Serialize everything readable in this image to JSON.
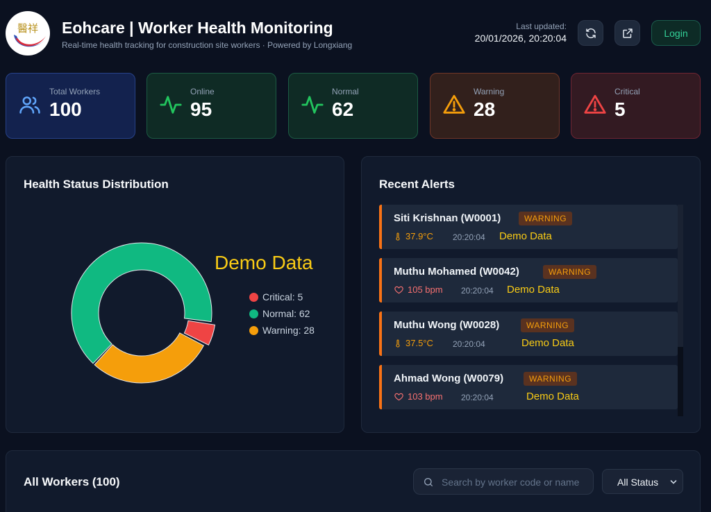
{
  "header": {
    "title": "Eohcare | Worker Health Monitoring",
    "subtitle": "Real-time health tracking for construction site workers · Powered by Longxiang",
    "last_updated_label": "Last updated:",
    "last_updated_value": "20/01/2026, 20:20:04",
    "logo_text": "醫祥",
    "refresh_icon": "refresh-icon",
    "external_icon": "external-link-icon",
    "login_label": "Login"
  },
  "stats": [
    {
      "key": "total",
      "label": "Total Workers",
      "value": "100",
      "icon": "users-icon",
      "color": "#60a5fa"
    },
    {
      "key": "online",
      "label": "Online",
      "value": "95",
      "icon": "activity-icon",
      "color": "#22c55e"
    },
    {
      "key": "normal",
      "label": "Normal",
      "value": "62",
      "icon": "activity-icon",
      "color": "#22c55e"
    },
    {
      "key": "warning",
      "label": "Warning",
      "value": "28",
      "icon": "warning-triangle-icon",
      "color": "#f59e0b"
    },
    {
      "key": "critical",
      "label": "Critical",
      "value": "5",
      "icon": "warning-triangle-icon",
      "color": "#ef4444"
    }
  ],
  "distribution": {
    "title": "Health Status Distribution",
    "overlay_text": "Demo Data",
    "chart_data": {
      "type": "pie",
      "categories": [
        "Critical",
        "Normal",
        "Warning"
      ],
      "values": [
        5,
        62,
        28
      ],
      "colors": [
        "#ef4444",
        "#10b981",
        "#f59e0b"
      ],
      "legend_labels": [
        "Critical: 5",
        "Normal: 62",
        "Warning: 28"
      ],
      "legend_placement": "right"
    }
  },
  "alerts": {
    "title": "Recent Alerts",
    "items": [
      {
        "name": "Siti Krishnan (W0001)",
        "badge": "WARNING",
        "metric": "37.9°C",
        "metric_type": "thermometer-icon",
        "time": "20:20:04",
        "overlay": "Demo Data"
      },
      {
        "name": "Muthu Mohamed (W0042)",
        "badge": "WARNING",
        "metric": "105 bpm",
        "metric_type": "heart-icon",
        "time": "20:20:04",
        "overlay": "Demo Data"
      },
      {
        "name": "Muthu Wong (W0028)",
        "badge": "WARNING",
        "metric": "37.5°C",
        "metric_type": "thermometer-icon",
        "time": "20:20:04",
        "overlay": "Demo Data"
      },
      {
        "name": "Ahmad Wong (W0079)",
        "badge": "WARNING",
        "metric": "103 bpm",
        "metric_type": "heart-icon",
        "time": "20:20:04",
        "overlay": "Demo Data"
      }
    ]
  },
  "workers": {
    "title": "All Workers (100)",
    "search_placeholder": "Search by worker code or name",
    "search_value": "",
    "status_filter": "All Status",
    "search_icon": "search-icon"
  }
}
